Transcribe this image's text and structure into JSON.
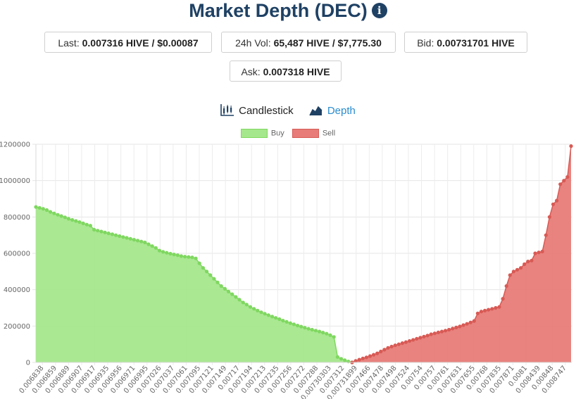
{
  "header": {
    "title": "Market Depth (DEC)",
    "info_icon": "info-icon"
  },
  "stats": {
    "last_label": "Last:",
    "last_value": "0.007316 HIVE / $0.00087",
    "vol_label": "24h Vol:",
    "vol_value": "65,487 HIVE / $7,775.30",
    "bid_label": "Bid:",
    "bid_value": "0.00731701 HIVE",
    "ask_label": "Ask:",
    "ask_value": "0.007318 HIVE"
  },
  "tabs": {
    "candlestick": "Candlestick",
    "depth": "Depth",
    "active": "depth"
  },
  "colors": {
    "buy_fill": "#a5e78c",
    "buy_line": "#7fd860",
    "sell_fill": "#e77c78",
    "sell_line": "#d85a55",
    "title": "#1f4164",
    "active_tab": "#2a8ccf"
  },
  "chart_data": {
    "type": "area",
    "title": "",
    "xlabel": "",
    "ylabel": "",
    "ylim": [
      0,
      1200000
    ],
    "yticks": [
      0,
      200000,
      400000,
      600000,
      800000,
      1000000,
      1200000
    ],
    "x_tick_labels": [
      "0.006838",
      "0.006859",
      "0.006889",
      "0.006907",
      "0.006917",
      "0.006935",
      "0.006956",
      "0.006971",
      "0.006995",
      "0.007026",
      "0.007037",
      "0.007061",
      "0.007095",
      "0.007121",
      "0.007149",
      "0.00717",
      "0.007194",
      "0.007213",
      "0.007235",
      "0.007256",
      "0.007272",
      "0.007288",
      "0.00730303",
      "0.007312",
      "0.00731899",
      "0.007466",
      "0.007478",
      "0.007498",
      "0.007524",
      "0.00754",
      "0.00757",
      "0.00761",
      "0.007631",
      "0.007655",
      "0.00768",
      "0.007835",
      "0.007871",
      "0.0081",
      "0.008439",
      "0.00848",
      "0.008747"
    ],
    "legend": [
      "Buy",
      "Sell"
    ],
    "legend_position": "top-center",
    "series": [
      {
        "name": "Buy",
        "color": "#a5e78c",
        "values": [
          855000,
          850000,
          845000,
          838000,
          828000,
          820000,
          812000,
          805000,
          798000,
          790000,
          784000,
          778000,
          772000,
          765000,
          758000,
          752000,
          730000,
          725000,
          720000,
          715000,
          710000,
          705000,
          700000,
          695000,
          690000,
          685000,
          680000,
          675000,
          670000,
          665000,
          660000,
          650000,
          640000,
          630000,
          615000,
          608000,
          603000,
          598000,
          594000,
          590000,
          585000,
          582000,
          580000,
          578000,
          572000,
          545000,
          520000,
          500000,
          480000,
          460000,
          440000,
          420000,
          405000,
          390000,
          375000,
          360000,
          345000,
          330000,
          318000,
          305000,
          295000,
          285000,
          276000,
          268000,
          260000,
          252000,
          245000,
          238000,
          230000,
          223000,
          216000,
          210000,
          203000,
          197000,
          191000,
          185000,
          180000,
          175000,
          170000,
          164000,
          158000,
          150000,
          140000,
          30000,
          20000,
          12000,
          5000,
          0
        ]
      },
      {
        "name": "Sell",
        "color": "#e77c78",
        "values": [
          0,
          8000,
          15000,
          22000,
          28000,
          35000,
          42000,
          50000,
          60000,
          70000,
          80000,
          87000,
          94000,
          100000,
          106000,
          112000,
          118000,
          124000,
          130000,
          136000,
          142000,
          148000,
          155000,
          160000,
          165000,
          170000,
          175000,
          180000,
          186000,
          192000,
          198000,
          205000,
          212000,
          220000,
          228000,
          270000,
          280000,
          285000,
          290000,
          295000,
          300000,
          305000,
          350000,
          420000,
          480000,
          500000,
          510000,
          520000,
          540000,
          555000,
          560000,
          600000,
          605000,
          610000,
          700000,
          800000,
          870000,
          890000,
          980000,
          1000000,
          1020000,
          1190000
        ]
      }
    ]
  }
}
